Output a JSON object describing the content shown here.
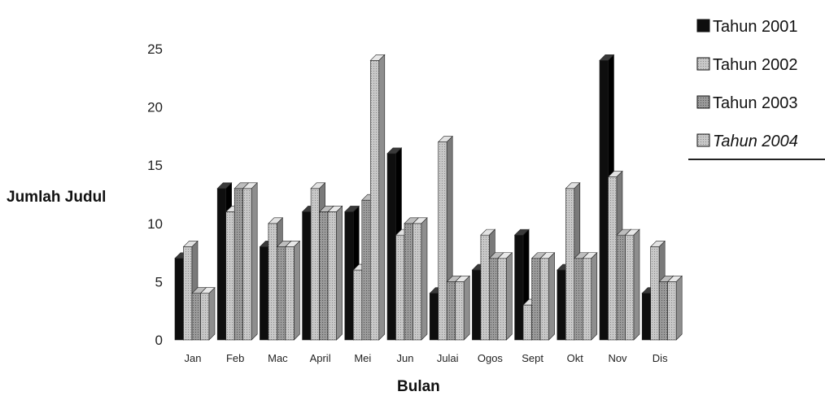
{
  "chart_data": {
    "type": "bar",
    "ylabel": "Jumlah Judul",
    "xlabel": "Bulan",
    "ylim": [
      0,
      25
    ],
    "yticks": [
      0,
      5,
      10,
      15,
      20,
      25
    ],
    "grid": false,
    "legend_position": "top-right",
    "categories": [
      "Jan",
      "Feb",
      "Mac",
      "April",
      "Mei",
      "Jun",
      "Julai",
      "Ogos",
      "Sept",
      "Okt",
      "Nov",
      "Dis"
    ],
    "series": [
      {
        "name": "Tahun 2001",
        "color": "#111111",
        "values": [
          7,
          13,
          8,
          11,
          11,
          16,
          4,
          6,
          9,
          6,
          24,
          4
        ]
      },
      {
        "name": "Tahun 2002",
        "color": "#a9a9a9",
        "values": [
          8,
          11,
          10,
          13,
          6,
          9,
          17,
          9,
          3,
          13,
          14,
          8
        ]
      },
      {
        "name": "Tahun 2003",
        "color": "#555555",
        "values": [
          4,
          13,
          8,
          11,
          12,
          10,
          5,
          7,
          7,
          7,
          9,
          5
        ]
      },
      {
        "name": "Tahun 2004",
        "color": "#c4c4c4",
        "values": [
          4,
          13,
          8,
          11,
          24,
          10,
          5,
          7,
          7,
          7,
          9,
          5
        ]
      }
    ]
  }
}
